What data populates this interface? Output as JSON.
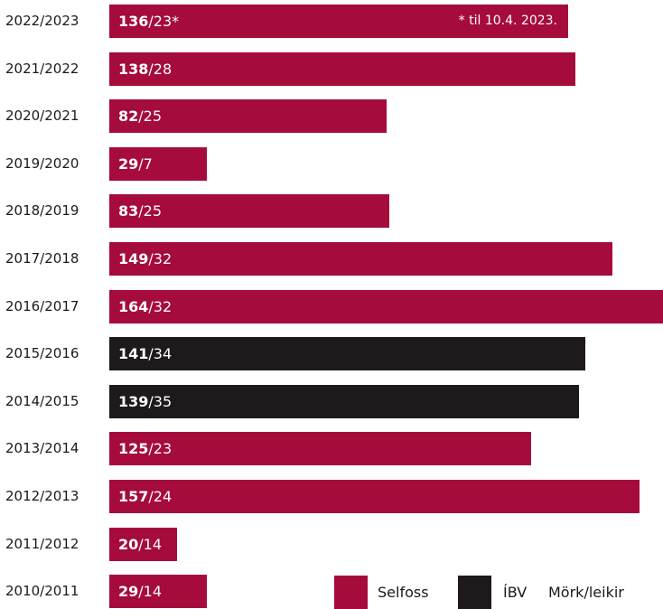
{
  "colors": {
    "selfoss": "#a50b3b",
    "ibv": "#1e1a1b"
  },
  "chart_data": {
    "type": "bar",
    "orientation": "horizontal",
    "categories": [
      "2022/2023",
      "2021/2022",
      "2020/2021",
      "2019/2020",
      "2018/2019",
      "2017/2018",
      "2016/2017",
      "2015/2016",
      "2014/2015",
      "2013/2014",
      "2012/2013",
      "2011/2012",
      "2010/2011"
    ],
    "goals": [
      136,
      138,
      82,
      29,
      83,
      149,
      164,
      141,
      139,
      125,
      157,
      20,
      29
    ],
    "games": [
      23,
      28,
      25,
      7,
      25,
      32,
      32,
      34,
      35,
      23,
      24,
      14,
      14
    ],
    "club": [
      "Selfoss",
      "Selfoss",
      "Selfoss",
      "Selfoss",
      "Selfoss",
      "Selfoss",
      "Selfoss",
      "ÍBV",
      "ÍBV",
      "Selfoss",
      "Selfoss",
      "Selfoss",
      "Selfoss"
    ],
    "suffixes": [
      "*",
      "",
      "",
      "",
      "",
      "",
      "",
      "",
      "",
      "",
      "",
      "",
      ""
    ],
    "xlim": [
      0,
      164
    ],
    "note": "* til 10.4. 2023.",
    "legend": [
      "Selfoss",
      "ÍBV",
      "Mörk/leikir"
    ]
  }
}
